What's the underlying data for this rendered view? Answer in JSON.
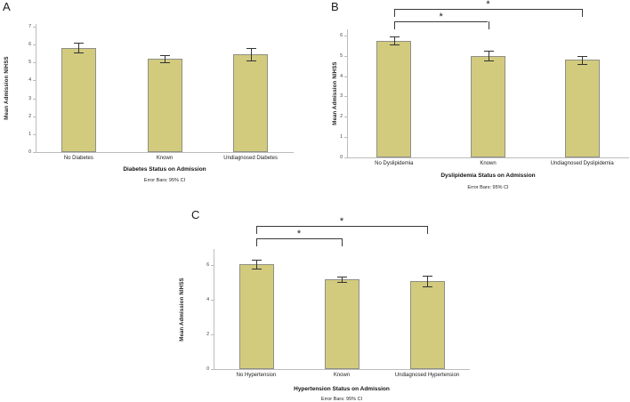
{
  "style": {
    "bar_fill": "#d2cb7e",
    "bar_border": "#8f8f85",
    "axis_color": "#bcbcbc",
    "error_bar_color": "#333333",
    "bracket_color": "#3a3a3a",
    "text_color": "#1a1a1a",
    "background": "#ffffff"
  },
  "chart_data": [
    {
      "type": "bar",
      "panel_label": "A",
      "xlabel": "Diabetes Status on Admission",
      "ylabel": "Mean Admission NIHSS",
      "footnote": "Error Bars: 95% CI",
      "categories": [
        "No Diabetes",
        "Known",
        "Undiagnosed Diabetes"
      ],
      "values": [
        5.8,
        5.2,
        5.45
      ],
      "ci_low": [
        5.55,
        5.0,
        5.1
      ],
      "ci_high": [
        6.1,
        5.4,
        5.8
      ],
      "ylim": [
        0,
        7.15
      ],
      "yticks": [
        0,
        1,
        2,
        3,
        4,
        5,
        6,
        7
      ],
      "grid": false,
      "brackets": []
    },
    {
      "type": "bar",
      "panel_label": "B",
      "xlabel": "Dyslipidemia Status on Admission",
      "ylabel": "Mean Admission NIHSS",
      "footnote": "Error Bars: 95% CI",
      "categories": [
        "No Dyslipidemia",
        "Known",
        "Undiagnosed Dyslipidemia"
      ],
      "values": [
        5.75,
        5.0,
        4.8
      ],
      "ci_low": [
        5.55,
        4.75,
        4.6
      ],
      "ci_high": [
        5.95,
        5.25,
        5.0
      ],
      "ylim": [
        0,
        6.3
      ],
      "yticks": [
        0,
        1,
        2,
        3,
        4,
        5,
        6
      ],
      "grid": false,
      "brackets": [
        {
          "from": 0,
          "to": 1,
          "label": "*",
          "level": 1
        },
        {
          "from": 0,
          "to": 2,
          "label": "*",
          "level": 2
        }
      ]
    },
    {
      "type": "bar",
      "panel_label": "C",
      "xlabel": "Hypertension Status on Admission",
      "ylabel": "Mean Admission NIHSS",
      "footnote": "Error Bars: 95% CI",
      "categories": [
        "No Hypertension",
        "Known",
        "Undiagnosed Hypertension"
      ],
      "values": [
        6.05,
        5.15,
        5.05
      ],
      "ci_low": [
        5.8,
        5.0,
        4.75
      ],
      "ci_high": [
        6.3,
        5.3,
        5.35
      ],
      "ylim": [
        0,
        6.9
      ],
      "yticks": [
        0,
        2,
        4,
        6
      ],
      "grid": false,
      "brackets": [
        {
          "from": 0,
          "to": 1,
          "label": "*",
          "level": 1
        },
        {
          "from": 0,
          "to": 2,
          "label": "*",
          "level": 2
        }
      ]
    }
  ]
}
